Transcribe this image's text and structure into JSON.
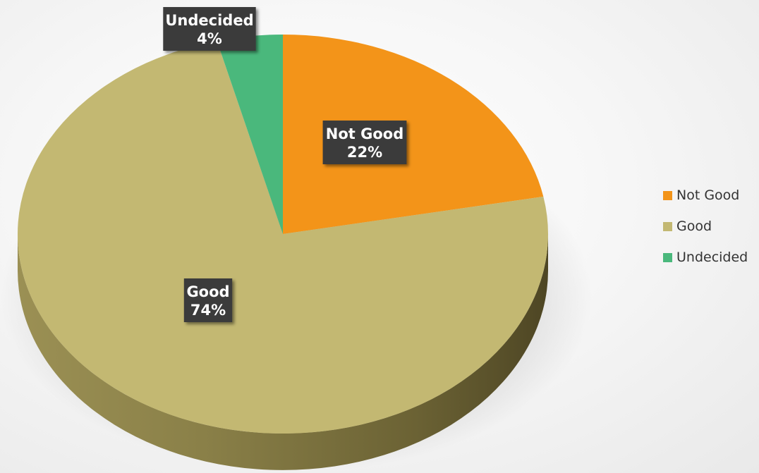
{
  "chart_data": {
    "type": "pie",
    "title": "",
    "slices": [
      {
        "label": "Not Good",
        "value": 22,
        "display": "22%",
        "color": "#f39419"
      },
      {
        "label": "Good",
        "value": 74,
        "display": "74%",
        "color": "#c3b872"
      },
      {
        "label": "Undecided",
        "value": 4,
        "display": "4%",
        "color": "#4ab87c"
      }
    ],
    "legend_position": "right",
    "style": "3d"
  }
}
